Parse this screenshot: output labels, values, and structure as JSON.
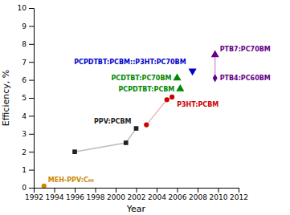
{
  "chart_data": {
    "type": "scatter",
    "xlabel": "Year",
    "ylabel": "Efficiency, %",
    "xlim": [
      1992,
      2012
    ],
    "ylim": [
      0,
      10
    ],
    "xticks": [
      1992,
      1994,
      1996,
      1998,
      2000,
      2002,
      2004,
      2006,
      2008,
      2010,
      2012
    ],
    "yticks": [
      0,
      1,
      2,
      3,
      4,
      5,
      6,
      7,
      8,
      9,
      10
    ],
    "grid": false,
    "series": [
      {
        "name": "MEH-PPV:C₆₀",
        "color": "#cc8800",
        "marker": "circle",
        "line_style": "none",
        "x": [
          1993
        ],
        "values": [
          0.1
        ]
      },
      {
        "name": "PPV:PCBM",
        "color": "#222222",
        "marker": "square",
        "line_style": "solid",
        "x": [
          1996,
          2001,
          2002
        ],
        "values": [
          2.0,
          2.5,
          3.3
        ]
      },
      {
        "name": "P3HT:PCBM",
        "color": "#cc0000",
        "marker": "circle",
        "line_style": "solid",
        "x": [
          2003,
          2005,
          2005.5
        ],
        "values": [
          3.5,
          4.9,
          5.05
        ]
      },
      {
        "name": "PCPDTBT:PCBM::P3HT:PC70BM",
        "color": "#0000cc",
        "marker": "triangle-down",
        "line_style": "none",
        "x": [
          2007.5
        ],
        "values": [
          6.5
        ]
      },
      {
        "name": "PCPDTBT:PCBM",
        "color": "#008800",
        "marker": "triangle-up",
        "line_style": "none",
        "x": [
          2006.3
        ],
        "values": [
          5.5
        ]
      },
      {
        "name": "PCDTBT:PC70BM",
        "color": "#008800",
        "marker": "triangle-up",
        "line_style": "none",
        "x": [
          2006.0
        ],
        "values": [
          6.1
        ]
      },
      {
        "name": "PTB7:PC70BM",
        "color": "#660088",
        "marker": "triangle-up",
        "line_style": "none",
        "x": [
          2009.7
        ],
        "values": [
          7.4
        ]
      },
      {
        "name": "PTB4:PC60BM",
        "color": "#660088",
        "marker": "diamond",
        "line_style": "none",
        "x": [
          2009.7
        ],
        "values": [
          6.1
        ]
      },
      {
        "color": "#cc88cc",
        "marker": "none",
        "line_style": "solid",
        "x": [
          2009.7,
          2009.7
        ],
        "values": [
          7.4,
          6.1
        ]
      }
    ]
  }
}
